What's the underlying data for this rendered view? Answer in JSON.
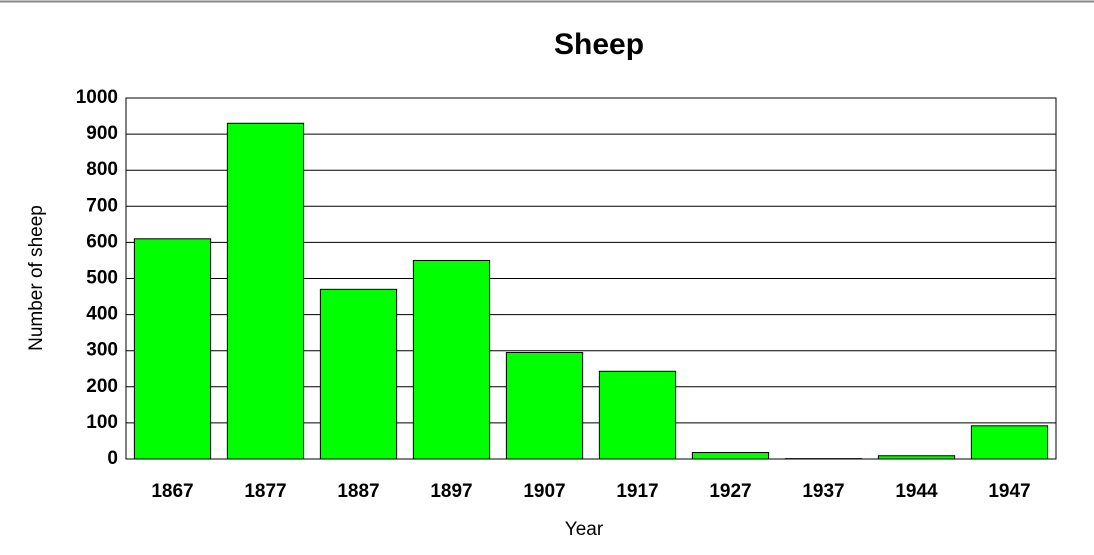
{
  "chart_data": {
    "type": "bar",
    "title": "Sheep",
    "x_label": "Year",
    "y_label": "Number of sheep",
    "categories": [
      "1867",
      "1877",
      "1887",
      "1897",
      "1907",
      "1917",
      "1927",
      "1937",
      "1944",
      "1947"
    ],
    "values": [
      610,
      930,
      470,
      550,
      295,
      243,
      18,
      1,
      9,
      92
    ],
    "color": "#00ff00",
    "ylim": [
      0,
      1000
    ],
    "yticks": [
      0,
      100,
      200,
      300,
      400,
      500,
      600,
      700,
      800,
      900,
      1000
    ],
    "grid": true
  }
}
